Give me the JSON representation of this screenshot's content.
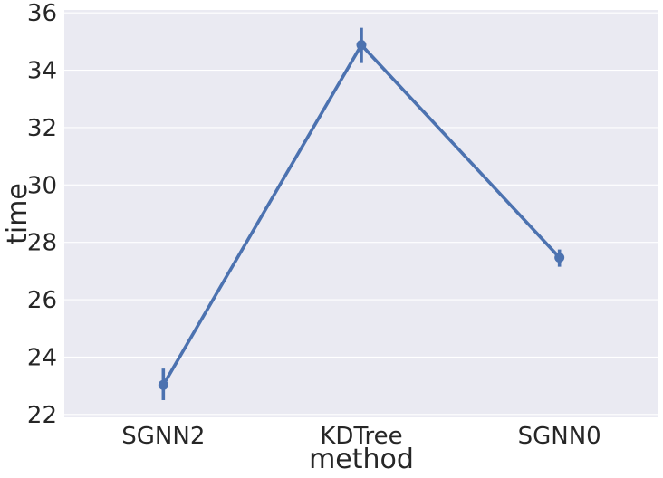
{
  "chart_data": {
    "type": "line",
    "xlabel": "method",
    "ylabel": "time",
    "categories": [
      "SGNN2",
      "KDTree",
      "SGNN0"
    ],
    "series": [
      {
        "values": [
          23.03,
          34.88,
          27.47
        ],
        "ci_low": [
          22.5,
          34.25,
          27.15
        ],
        "ci_high": [
          23.6,
          35.48,
          27.75
        ]
      }
    ],
    "ylim": [
      21.9,
      36.1
    ],
    "yticks": [
      "22",
      "24",
      "26",
      "28",
      "30",
      "32",
      "34",
      "36"
    ],
    "grid": true,
    "colors": {
      "background": "#eaeaf2",
      "grid": "#ffffff",
      "line": "#4c72b0"
    }
  }
}
